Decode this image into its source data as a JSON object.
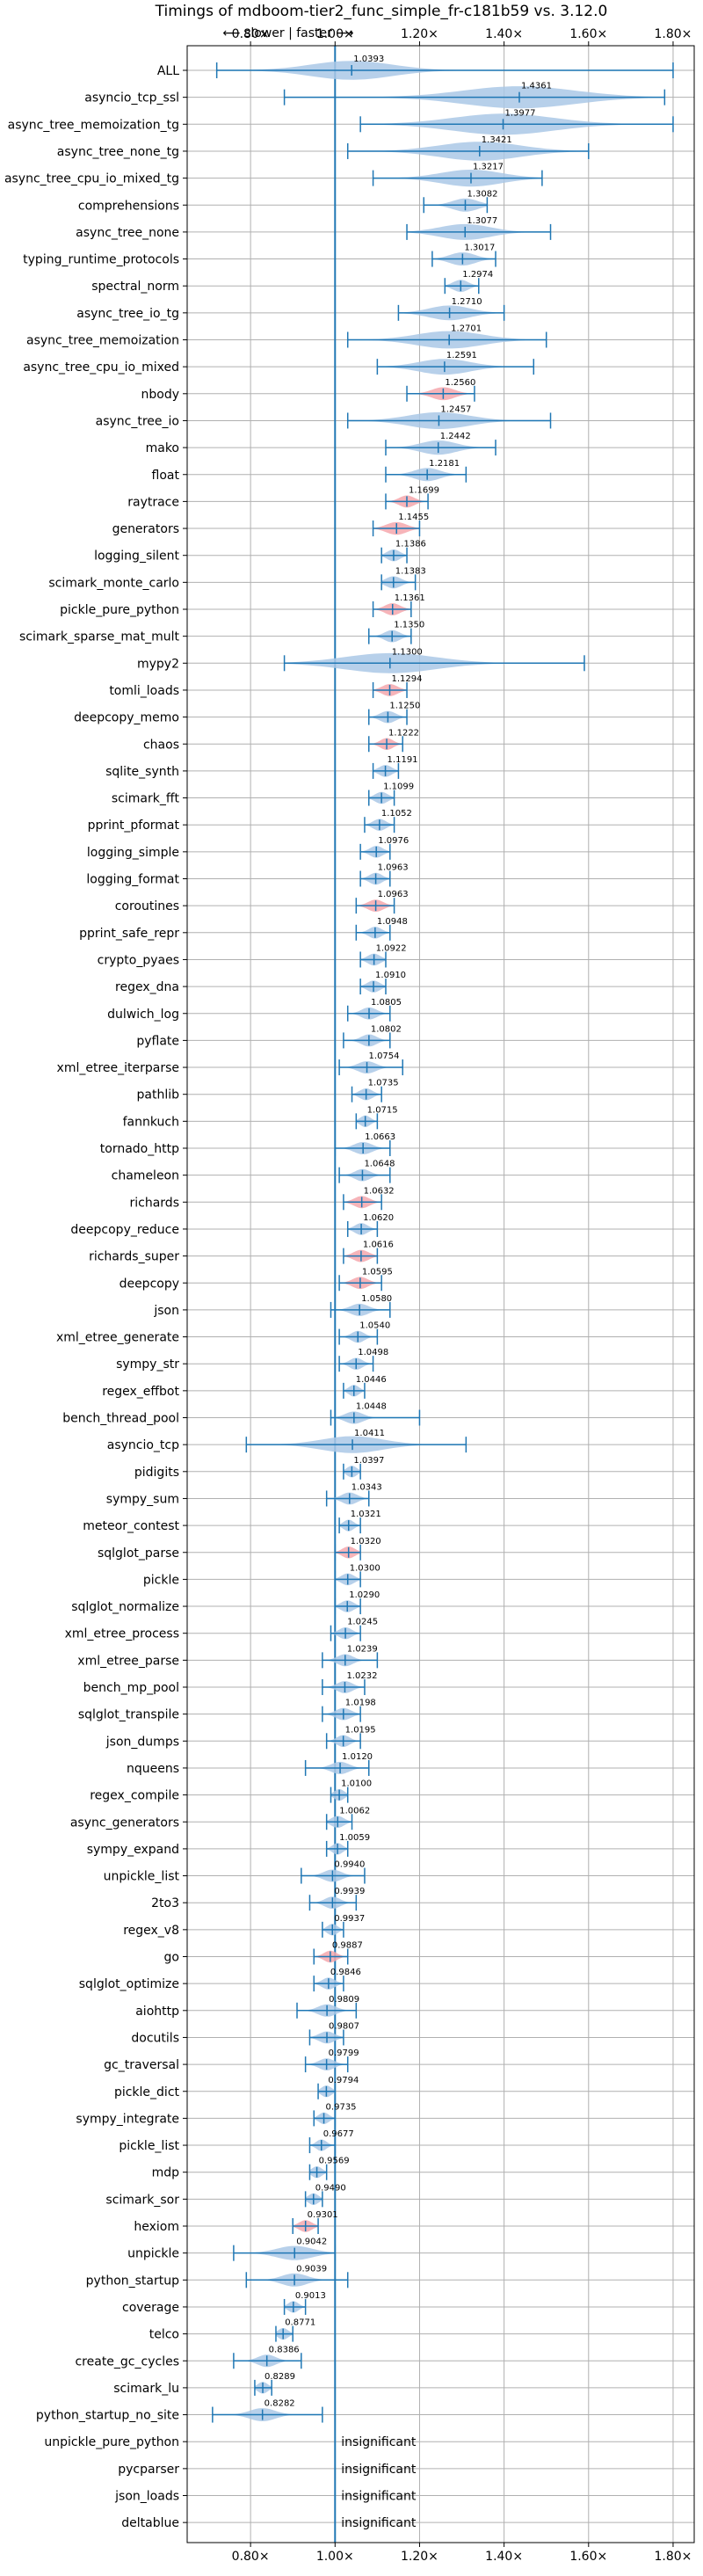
{
  "chart_data": {
    "type": "violin",
    "title": "Timings of mdboom-tier2_func_simple_fr-c181b59 vs. 3.12.0",
    "direction_label": "⟵ slower | faster ⟶",
    "x_ticks": [
      "0.80×",
      "1.00×",
      "1.20×",
      "1.40×",
      "1.60×",
      "1.80×"
    ],
    "x_tick_values": [
      0.8,
      1.0,
      1.2,
      1.4,
      1.6,
      1.8
    ],
    "xlim": [
      0.65,
      1.85
    ],
    "grid": true,
    "reference_value": 1.0,
    "colors": {
      "violin": "#aac8e6",
      "highlight": "#f4a7ad",
      "line": "#1f77b4"
    },
    "benchmarks": [
      {
        "name": "ALL",
        "value": 1.0393,
        "lo": 0.72,
        "hi": 1.8,
        "spread": 0.16,
        "value_text": "1.0393"
      },
      {
        "name": "asyncio_tcp_ssl",
        "value": 1.4361,
        "lo": 0.88,
        "hi": 1.78,
        "spread": 0.22,
        "value_text": "1.4361"
      },
      {
        "name": "async_tree_memoization_tg",
        "value": 1.3977,
        "lo": 1.06,
        "hi": 1.8,
        "spread": 0.2,
        "value_text": "1.3977"
      },
      {
        "name": "async_tree_none_tg",
        "value": 1.3421,
        "lo": 1.03,
        "hi": 1.6,
        "spread": 0.16,
        "value_text": "1.3421"
      },
      {
        "name": "async_tree_cpu_io_mixed_tg",
        "value": 1.3217,
        "lo": 1.09,
        "hi": 1.49,
        "spread": 0.12,
        "value_text": "1.3217"
      },
      {
        "name": "comprehensions",
        "value": 1.3082,
        "lo": 1.21,
        "hi": 1.36,
        "spread": 0.05,
        "value_text": "1.3082"
      },
      {
        "name": "async_tree_none",
        "value": 1.3077,
        "lo": 1.17,
        "hi": 1.51,
        "spread": 0.1,
        "value_text": "1.3077"
      },
      {
        "name": "typing_runtime_protocols",
        "value": 1.3017,
        "lo": 1.23,
        "hi": 1.38,
        "spread": 0.05,
        "value_text": "1.3017"
      },
      {
        "name": "spectral_norm",
        "value": 1.2974,
        "lo": 1.26,
        "hi": 1.34,
        "spread": 0.03,
        "value_text": "1.2974"
      },
      {
        "name": "async_tree_io_tg",
        "value": 1.271,
        "lo": 1.15,
        "hi": 1.4,
        "spread": 0.08,
        "value_text": "1.2710"
      },
      {
        "name": "async_tree_memoization",
        "value": 1.2701,
        "lo": 1.03,
        "hi": 1.5,
        "spread": 0.13,
        "value_text": "1.2701"
      },
      {
        "name": "async_tree_cpu_io_mixed",
        "value": 1.2591,
        "lo": 1.1,
        "hi": 1.47,
        "spread": 0.1,
        "value_text": "1.2591"
      },
      {
        "name": "nbody",
        "value": 1.256,
        "lo": 1.17,
        "hi": 1.33,
        "spread": 0.045,
        "highlight": true,
        "value_text": "1.2560"
      },
      {
        "name": "async_tree_io",
        "value": 1.2457,
        "lo": 1.03,
        "hi": 1.51,
        "spread": 0.12,
        "value_text": "1.2457"
      },
      {
        "name": "mako",
        "value": 1.2442,
        "lo": 1.12,
        "hi": 1.38,
        "spread": 0.07,
        "value_text": "1.2442"
      },
      {
        "name": "float",
        "value": 1.2181,
        "lo": 1.12,
        "hi": 1.31,
        "spread": 0.05,
        "value_text": "1.2181"
      },
      {
        "name": "raytrace",
        "value": 1.1699,
        "lo": 1.12,
        "hi": 1.22,
        "spread": 0.03,
        "highlight": true,
        "value_text": "1.1699"
      },
      {
        "name": "generators",
        "value": 1.1455,
        "lo": 1.09,
        "hi": 1.2,
        "spread": 0.04,
        "highlight": true,
        "value_text": "1.1455"
      },
      {
        "name": "logging_silent",
        "value": 1.1386,
        "lo": 1.11,
        "hi": 1.17,
        "spread": 0.025,
        "value_text": "1.1386"
      },
      {
        "name": "scimark_monte_carlo",
        "value": 1.1383,
        "lo": 1.11,
        "hi": 1.19,
        "spread": 0.03,
        "value_text": "1.1383"
      },
      {
        "name": "pickle_pure_python",
        "value": 1.1361,
        "lo": 1.09,
        "hi": 1.18,
        "spread": 0.03,
        "highlight": true,
        "value_text": "1.1361"
      },
      {
        "name": "scimark_sparse_mat_mult",
        "value": 1.135,
        "lo": 1.08,
        "hi": 1.18,
        "spread": 0.03,
        "value_text": "1.1350"
      },
      {
        "name": "mypy2",
        "value": 1.13,
        "lo": 0.88,
        "hi": 1.59,
        "spread": 0.18,
        "value_text": "1.1300"
      },
      {
        "name": "tomli_loads",
        "value": 1.1294,
        "lo": 1.09,
        "hi": 1.17,
        "spread": 0.03,
        "highlight": true,
        "value_text": "1.1294"
      },
      {
        "name": "deepcopy_memo",
        "value": 1.125,
        "lo": 1.08,
        "hi": 1.17,
        "spread": 0.03,
        "value_text": "1.1250"
      },
      {
        "name": "chaos",
        "value": 1.1222,
        "lo": 1.08,
        "hi": 1.16,
        "spread": 0.025,
        "highlight": true,
        "value_text": "1.1222"
      },
      {
        "name": "sqlite_synth",
        "value": 1.1191,
        "lo": 1.09,
        "hi": 1.15,
        "spread": 0.025,
        "value_text": "1.1191"
      },
      {
        "name": "scimark_fft",
        "value": 1.1099,
        "lo": 1.08,
        "hi": 1.14,
        "spread": 0.025,
        "value_text": "1.1099"
      },
      {
        "name": "pprint_pformat",
        "value": 1.1052,
        "lo": 1.07,
        "hi": 1.14,
        "spread": 0.025,
        "value_text": "1.1052"
      },
      {
        "name": "logging_simple",
        "value": 1.0976,
        "lo": 1.06,
        "hi": 1.13,
        "spread": 0.025,
        "value_text": "1.0976"
      },
      {
        "name": "logging_format",
        "value": 1.0963,
        "lo": 1.06,
        "hi": 1.13,
        "spread": 0.025,
        "value_text": "1.0963"
      },
      {
        "name": "coroutines",
        "value": 1.0963,
        "lo": 1.05,
        "hi": 1.14,
        "spread": 0.03,
        "highlight": true,
        "value_text": "1.0963"
      },
      {
        "name": "pprint_safe_repr",
        "value": 1.0948,
        "lo": 1.05,
        "hi": 1.13,
        "spread": 0.025,
        "value_text": "1.0948"
      },
      {
        "name": "crypto_pyaes",
        "value": 1.0922,
        "lo": 1.06,
        "hi": 1.12,
        "spread": 0.025,
        "value_text": "1.0922"
      },
      {
        "name": "regex_dna",
        "value": 1.091,
        "lo": 1.06,
        "hi": 1.12,
        "spread": 0.025,
        "value_text": "1.0910"
      },
      {
        "name": "dulwich_log",
        "value": 1.0805,
        "lo": 1.03,
        "hi": 1.13,
        "spread": 0.03,
        "value_text": "1.0805"
      },
      {
        "name": "pyflate",
        "value": 1.0802,
        "lo": 1.02,
        "hi": 1.13,
        "spread": 0.03,
        "value_text": "1.0802"
      },
      {
        "name": "xml_etree_iterparse",
        "value": 1.0754,
        "lo": 1.01,
        "hi": 1.16,
        "spread": 0.035,
        "value_text": "1.0754"
      },
      {
        "name": "pathlib",
        "value": 1.0735,
        "lo": 1.04,
        "hi": 1.11,
        "spread": 0.025,
        "value_text": "1.0735"
      },
      {
        "name": "fannkuch",
        "value": 1.0715,
        "lo": 1.05,
        "hi": 1.1,
        "spread": 0.02,
        "value_text": "1.0715"
      },
      {
        "name": "tornado_http",
        "value": 1.0663,
        "lo": 1.0,
        "hi": 1.13,
        "spread": 0.035,
        "value_text": "1.0663"
      },
      {
        "name": "chameleon",
        "value": 1.0648,
        "lo": 1.01,
        "hi": 1.13,
        "spread": 0.03,
        "value_text": "1.0648"
      },
      {
        "name": "richards",
        "value": 1.0632,
        "lo": 1.02,
        "hi": 1.11,
        "spread": 0.03,
        "highlight": true,
        "value_text": "1.0632"
      },
      {
        "name": "deepcopy_reduce",
        "value": 1.062,
        "lo": 1.03,
        "hi": 1.1,
        "spread": 0.025,
        "value_text": "1.0620"
      },
      {
        "name": "richards_super",
        "value": 1.0616,
        "lo": 1.02,
        "hi": 1.1,
        "spread": 0.03,
        "highlight": true,
        "value_text": "1.0616"
      },
      {
        "name": "deepcopy",
        "value": 1.0595,
        "lo": 1.01,
        "hi": 1.11,
        "spread": 0.03,
        "highlight": true,
        "value_text": "1.0595"
      },
      {
        "name": "json",
        "value": 1.058,
        "lo": 0.99,
        "hi": 1.13,
        "spread": 0.035,
        "value_text": "1.0580"
      },
      {
        "name": "xml_etree_generate",
        "value": 1.054,
        "lo": 1.01,
        "hi": 1.1,
        "spread": 0.025,
        "value_text": "1.0540"
      },
      {
        "name": "sympy_str",
        "value": 1.0498,
        "lo": 1.01,
        "hi": 1.09,
        "spread": 0.025,
        "value_text": "1.0498"
      },
      {
        "name": "regex_effbot",
        "value": 1.0446,
        "lo": 1.02,
        "hi": 1.07,
        "spread": 0.02,
        "value_text": "1.0446"
      },
      {
        "name": "bench_thread_pool",
        "value": 1.0448,
        "lo": 0.99,
        "hi": 1.2,
        "spread": 0.035,
        "value_text": "1.0448"
      },
      {
        "name": "asyncio_tcp",
        "value": 1.0411,
        "lo": 0.79,
        "hi": 1.31,
        "spread": 0.12,
        "value_text": "1.0411"
      },
      {
        "name": "pidigits",
        "value": 1.0397,
        "lo": 1.02,
        "hi": 1.06,
        "spread": 0.02,
        "value_text": "1.0397"
      },
      {
        "name": "sympy_sum",
        "value": 1.0343,
        "lo": 0.98,
        "hi": 1.08,
        "spread": 0.03,
        "value_text": "1.0343"
      },
      {
        "name": "meteor_contest",
        "value": 1.0321,
        "lo": 1.01,
        "hi": 1.06,
        "spread": 0.02,
        "value_text": "1.0321"
      },
      {
        "name": "sqlglot_parse",
        "value": 1.032,
        "lo": 1.0,
        "hi": 1.06,
        "spread": 0.025,
        "highlight": true,
        "value_text": "1.0320"
      },
      {
        "name": "pickle",
        "value": 1.03,
        "lo": 1.0,
        "hi": 1.06,
        "spread": 0.025,
        "value_text": "1.0300"
      },
      {
        "name": "sqlglot_normalize",
        "value": 1.029,
        "lo": 1.0,
        "hi": 1.06,
        "spread": 0.025,
        "value_text": "1.0290"
      },
      {
        "name": "xml_etree_process",
        "value": 1.0245,
        "lo": 0.99,
        "hi": 1.06,
        "spread": 0.025,
        "value_text": "1.0245"
      },
      {
        "name": "xml_etree_parse",
        "value": 1.0239,
        "lo": 0.97,
        "hi": 1.1,
        "spread": 0.03,
        "value_text": "1.0239"
      },
      {
        "name": "bench_mp_pool",
        "value": 1.0232,
        "lo": 0.97,
        "hi": 1.07,
        "spread": 0.03,
        "value_text": "1.0232"
      },
      {
        "name": "sqlglot_transpile",
        "value": 1.0198,
        "lo": 0.97,
        "hi": 1.06,
        "spread": 0.03,
        "value_text": "1.0198"
      },
      {
        "name": "json_dumps",
        "value": 1.0195,
        "lo": 0.98,
        "hi": 1.06,
        "spread": 0.025,
        "value_text": "1.0195"
      },
      {
        "name": "nqueens",
        "value": 1.012,
        "lo": 0.93,
        "hi": 1.08,
        "spread": 0.035,
        "value_text": "1.0120"
      },
      {
        "name": "regex_compile",
        "value": 1.01,
        "lo": 0.99,
        "hi": 1.03,
        "spread": 0.02,
        "value_text": "1.0100"
      },
      {
        "name": "async_generators",
        "value": 1.0062,
        "lo": 0.98,
        "hi": 1.04,
        "spread": 0.025,
        "value_text": "1.0062"
      },
      {
        "name": "sympy_expand",
        "value": 1.0059,
        "lo": 0.98,
        "hi": 1.03,
        "spread": 0.02,
        "value_text": "1.0059"
      },
      {
        "name": "unpickle_list",
        "value": 0.994,
        "lo": 0.92,
        "hi": 1.07,
        "spread": 0.035,
        "value_text": "0.9940"
      },
      {
        "name": "2to3",
        "value": 0.9939,
        "lo": 0.94,
        "hi": 1.05,
        "spread": 0.03,
        "value_text": "0.9939"
      },
      {
        "name": "regex_v8",
        "value": 0.9937,
        "lo": 0.97,
        "hi": 1.02,
        "spread": 0.02,
        "value_text": "0.9937"
      },
      {
        "name": "go",
        "value": 0.9887,
        "lo": 0.95,
        "hi": 1.03,
        "spread": 0.025,
        "highlight": true,
        "value_text": "0.9887"
      },
      {
        "name": "sqlglot_optimize",
        "value": 0.9846,
        "lo": 0.95,
        "hi": 1.02,
        "spread": 0.025,
        "value_text": "0.9846"
      },
      {
        "name": "aiohttp",
        "value": 0.9809,
        "lo": 0.91,
        "hi": 1.05,
        "spread": 0.035,
        "value_text": "0.9809"
      },
      {
        "name": "docutils",
        "value": 0.9807,
        "lo": 0.94,
        "hi": 1.02,
        "spread": 0.03,
        "value_text": "0.9807"
      },
      {
        "name": "gc_traversal",
        "value": 0.9799,
        "lo": 0.93,
        "hi": 1.03,
        "spread": 0.03,
        "value_text": "0.9799"
      },
      {
        "name": "pickle_dict",
        "value": 0.9794,
        "lo": 0.96,
        "hi": 1.0,
        "spread": 0.02,
        "value_text": "0.9794"
      },
      {
        "name": "sympy_integrate",
        "value": 0.9735,
        "lo": 0.95,
        "hi": 1.0,
        "spread": 0.02,
        "value_text": "0.9735"
      },
      {
        "name": "pickle_list",
        "value": 0.9677,
        "lo": 0.94,
        "hi": 1.0,
        "spread": 0.02,
        "value_text": "0.9677"
      },
      {
        "name": "mdp",
        "value": 0.9569,
        "lo": 0.94,
        "hi": 0.98,
        "spread": 0.02,
        "value_text": "0.9569"
      },
      {
        "name": "scimark_sor",
        "value": 0.949,
        "lo": 0.93,
        "hi": 0.97,
        "spread": 0.02,
        "value_text": "0.9490"
      },
      {
        "name": "hexiom",
        "value": 0.9301,
        "lo": 0.9,
        "hi": 0.96,
        "spread": 0.025,
        "highlight": true,
        "value_text": "0.9301"
      },
      {
        "name": "unpickle",
        "value": 0.9042,
        "lo": 0.76,
        "hi": 1.0,
        "spread": 0.07,
        "value_text": "0.9042"
      },
      {
        "name": "python_startup",
        "value": 0.9039,
        "lo": 0.79,
        "hi": 1.03,
        "spread": 0.05,
        "value_text": "0.9039"
      },
      {
        "name": "coverage",
        "value": 0.9013,
        "lo": 0.88,
        "hi": 0.93,
        "spread": 0.02,
        "value_text": "0.9013"
      },
      {
        "name": "telco",
        "value": 0.8771,
        "lo": 0.86,
        "hi": 0.9,
        "spread": 0.02,
        "value_text": "0.8771"
      },
      {
        "name": "create_gc_cycles",
        "value": 0.8386,
        "lo": 0.76,
        "hi": 0.92,
        "spread": 0.035,
        "value_text": "0.8386"
      },
      {
        "name": "scimark_lu",
        "value": 0.8289,
        "lo": 0.81,
        "hi": 0.85,
        "spread": 0.02,
        "value_text": "0.8289"
      },
      {
        "name": "python_startup_no_site",
        "value": 0.8282,
        "lo": 0.71,
        "hi": 0.97,
        "spread": 0.05,
        "value_text": "0.8282"
      },
      {
        "name": "unpickle_pure_python",
        "insignificant": true
      },
      {
        "name": "pycparser",
        "insignificant": true
      },
      {
        "name": "json_loads",
        "insignificant": true
      },
      {
        "name": "deltablue",
        "insignificant": true
      }
    ],
    "insignificant_label": "insignificant"
  }
}
